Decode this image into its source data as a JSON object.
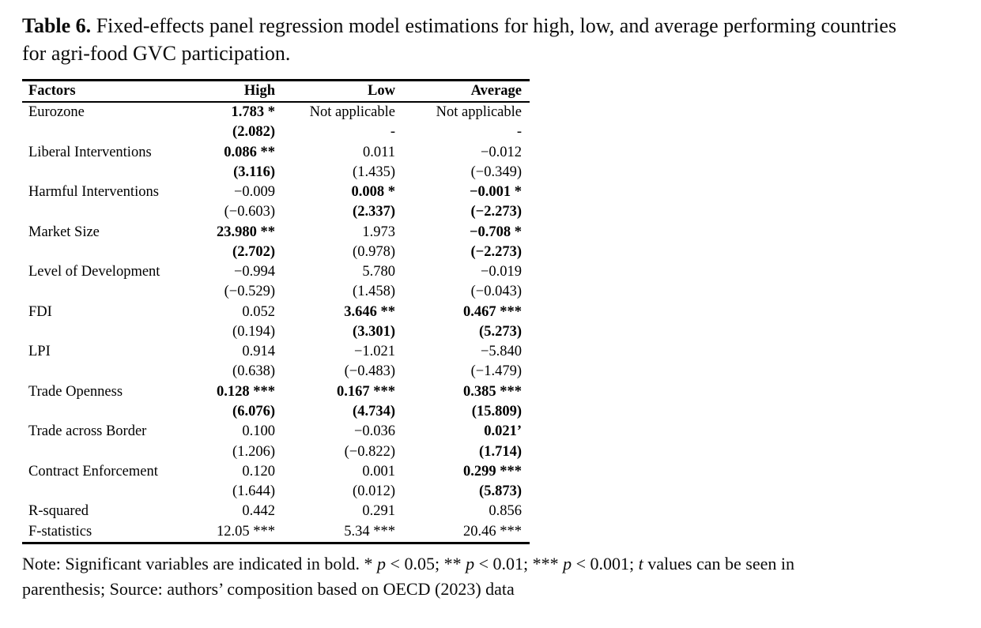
{
  "caption": {
    "label": "Table 6.",
    "text": "Fixed-effects panel regression model estimations for high, low, and average performing countries for agri-food GVC participation."
  },
  "table": {
    "headers": [
      "Factors",
      "High",
      "Low",
      "Average"
    ],
    "rows": [
      {
        "factor": "Eurozone",
        "cells": [
          {
            "t": "1.783 *",
            "b": true
          },
          {
            "t": "Not applicable",
            "b": false
          },
          {
            "t": "Not applicable",
            "b": false
          }
        ]
      },
      {
        "factor": "",
        "cells": [
          {
            "t": "(2.082)",
            "b": true
          },
          {
            "t": "-",
            "b": false
          },
          {
            "t": "-",
            "b": false
          }
        ]
      },
      {
        "factor": "Liberal Interventions",
        "cells": [
          {
            "t": "0.086 **",
            "b": true
          },
          {
            "t": "0.011",
            "b": false
          },
          {
            "t": "−0.012",
            "b": false
          }
        ]
      },
      {
        "factor": "",
        "cells": [
          {
            "t": "(3.116)",
            "b": true
          },
          {
            "t": "(1.435)",
            "b": false
          },
          {
            "t": "(−0.349)",
            "b": false
          }
        ]
      },
      {
        "factor": "Harmful Interventions",
        "cells": [
          {
            "t": "−0.009",
            "b": false
          },
          {
            "t": "0.008 *",
            "b": true
          },
          {
            "t": "−0.001 *",
            "b": true
          }
        ]
      },
      {
        "factor": "",
        "cells": [
          {
            "t": "(−0.603)",
            "b": false
          },
          {
            "t": "(2.337)",
            "b": true
          },
          {
            "t": "(−2.273)",
            "b": true
          }
        ]
      },
      {
        "factor": "Market Size",
        "cells": [
          {
            "t": "23.980 **",
            "b": true
          },
          {
            "t": "1.973",
            "b": false
          },
          {
            "t": "−0.708 *",
            "b": true
          }
        ]
      },
      {
        "factor": "",
        "cells": [
          {
            "t": "(2.702)",
            "b": true
          },
          {
            "t": "(0.978)",
            "b": false
          },
          {
            "t": "(−2.273)",
            "b": true
          }
        ]
      },
      {
        "factor": "Level of Development",
        "cells": [
          {
            "t": "−0.994",
            "b": false
          },
          {
            "t": "5.780",
            "b": false
          },
          {
            "t": "−0.019",
            "b": false
          }
        ]
      },
      {
        "factor": "",
        "cells": [
          {
            "t": "(−0.529)",
            "b": false
          },
          {
            "t": "(1.458)",
            "b": false
          },
          {
            "t": "(−0.043)",
            "b": false
          }
        ]
      },
      {
        "factor": "FDI",
        "cells": [
          {
            "t": "0.052",
            "b": false
          },
          {
            "t": "3.646 **",
            "b": true
          },
          {
            "t": "0.467 ***",
            "b": true
          }
        ]
      },
      {
        "factor": "",
        "cells": [
          {
            "t": "(0.194)",
            "b": false
          },
          {
            "t": "(3.301)",
            "b": true
          },
          {
            "t": "(5.273)",
            "b": true
          }
        ]
      },
      {
        "factor": "LPI",
        "cells": [
          {
            "t": "0.914",
            "b": false
          },
          {
            "t": "−1.021",
            "b": false
          },
          {
            "t": "−5.840",
            "b": false
          }
        ]
      },
      {
        "factor": "",
        "cells": [
          {
            "t": "(0.638)",
            "b": false
          },
          {
            "t": "(−0.483)",
            "b": false
          },
          {
            "t": "(−1.479)",
            "b": false
          }
        ]
      },
      {
        "factor": "Trade Openness",
        "cells": [
          {
            "t": "0.128 ***",
            "b": true
          },
          {
            "t": "0.167 ***",
            "b": true
          },
          {
            "t": "0.385 ***",
            "b": true
          }
        ]
      },
      {
        "factor": "",
        "cells": [
          {
            "t": "(6.076)",
            "b": true
          },
          {
            "t": "(4.734)",
            "b": true
          },
          {
            "t": "(15.809)",
            "b": true
          }
        ]
      },
      {
        "factor": "Trade across Border",
        "cells": [
          {
            "t": "0.100",
            "b": false
          },
          {
            "t": "−0.036",
            "b": false
          },
          {
            "t": "0.021’",
            "b": true
          }
        ]
      },
      {
        "factor": "",
        "cells": [
          {
            "t": "(1.206)",
            "b": false
          },
          {
            "t": "(−0.822)",
            "b": false
          },
          {
            "t": "(1.714)",
            "b": true
          }
        ]
      },
      {
        "factor": "Contract Enforcement",
        "cells": [
          {
            "t": "0.120",
            "b": false
          },
          {
            "t": "0.001",
            "b": false
          },
          {
            "t": "0.299 ***",
            "b": true
          }
        ]
      },
      {
        "factor": "",
        "cells": [
          {
            "t": "(1.644)",
            "b": false
          },
          {
            "t": "(0.012)",
            "b": false
          },
          {
            "t": "(5.873)",
            "b": true
          }
        ]
      },
      {
        "factor": "R-squared",
        "cells": [
          {
            "t": "0.442",
            "b": false
          },
          {
            "t": "0.291",
            "b": false
          },
          {
            "t": "0.856",
            "b": false
          }
        ]
      },
      {
        "factor": "F-statistics",
        "cells": [
          {
            "t": "12.05 ***",
            "b": false
          },
          {
            "t": "5.34 ***",
            "b": false
          },
          {
            "t": "20.46 ***",
            "b": false
          }
        ]
      }
    ]
  },
  "note": {
    "parts": [
      {
        "t": "Note: Significant variables are indicated in bold. * ",
        "i": false
      },
      {
        "t": "p",
        "i": true
      },
      {
        "t": " < 0.05; ** ",
        "i": false
      },
      {
        "t": "p",
        "i": true
      },
      {
        "t": " < 0.01; *** ",
        "i": false
      },
      {
        "t": "p",
        "i": true
      },
      {
        "t": " < 0.001; ",
        "i": false
      },
      {
        "t": "t",
        "i": true
      },
      {
        "t": " values can be seen in parenthesis; Source: authors’ composition based on OECD (2023) data",
        "i": false
      }
    ]
  },
  "colors": {
    "text": "#000000",
    "rule": "#000000",
    "background": "#ffffff"
  }
}
